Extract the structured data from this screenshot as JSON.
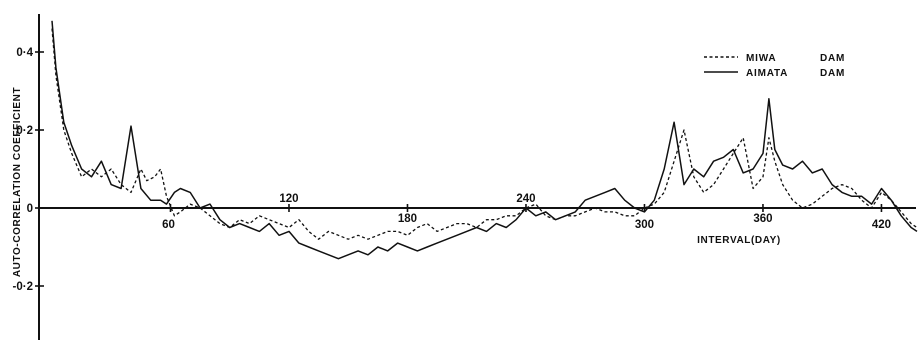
{
  "chart_data": {
    "type": "line",
    "title": "",
    "xlabel": "INTERVAL(DAY)",
    "ylabel": "AUTO-CORRELATION COEFFICIENT",
    "xlim": [
      0,
      438
    ],
    "ylim": [
      -0.24,
      0.45
    ],
    "x_ticks": [
      60,
      120,
      180,
      240,
      300,
      360,
      420
    ],
    "x_tick_labels": [
      "60",
      "120",
      "180",
      "240",
      "300",
      "360",
      "420"
    ],
    "y_ticks": [
      0.4,
      0.2,
      0,
      -0.2
    ],
    "y_tick_labels": [
      "0·4",
      "0·2",
      "0",
      "-0·2"
    ],
    "grid": false,
    "legend_position": "top-right",
    "series": [
      {
        "name": "MIWA DAM",
        "line_style": "dashed",
        "x": [
          0,
          2,
          6,
          10,
          15,
          20,
          25,
          30,
          35,
          40,
          45,
          48,
          52,
          55,
          58,
          62,
          65,
          70,
          75,
          80,
          85,
          90,
          95,
          100,
          105,
          110,
          115,
          120,
          125,
          130,
          135,
          140,
          145,
          150,
          155,
          160,
          165,
          170,
          175,
          180,
          185,
          190,
          195,
          200,
          205,
          210,
          215,
          220,
          225,
          230,
          235,
          240,
          245,
          250,
          255,
          260,
          265,
          270,
          275,
          280,
          285,
          290,
          295,
          300,
          305,
          310,
          315,
          320,
          325,
          330,
          335,
          340,
          345,
          350,
          355,
          360,
          363,
          366,
          370,
          375,
          380,
          385,
          390,
          395,
          400,
          405,
          410,
          415,
          420,
          425,
          430,
          435,
          438
        ],
        "y": [
          0.46,
          0.34,
          0.2,
          0.14,
          0.08,
          0.1,
          0.08,
          0.1,
          0.06,
          0.04,
          0.1,
          0.07,
          0.08,
          0.1,
          0.03,
          -0.02,
          -0.01,
          0.01,
          0.0,
          -0.02,
          -0.04,
          -0.05,
          -0.03,
          -0.04,
          -0.02,
          -0.03,
          -0.04,
          -0.05,
          -0.03,
          -0.06,
          -0.08,
          -0.06,
          -0.07,
          -0.08,
          -0.07,
          -0.08,
          -0.07,
          -0.06,
          -0.06,
          -0.07,
          -0.05,
          -0.04,
          -0.06,
          -0.05,
          -0.04,
          -0.04,
          -0.05,
          -0.03,
          -0.03,
          -0.02,
          -0.02,
          0.0,
          0.01,
          -0.02,
          -0.03,
          -0.02,
          -0.02,
          -0.01,
          0.0,
          -0.01,
          -0.01,
          -0.02,
          -0.02,
          0.0,
          0.01,
          0.04,
          0.12,
          0.2,
          0.08,
          0.04,
          0.06,
          0.1,
          0.14,
          0.18,
          0.05,
          0.08,
          0.18,
          0.12,
          0.06,
          0.02,
          0.0,
          0.01,
          0.03,
          0.05,
          0.06,
          0.05,
          0.02,
          0.0,
          0.04,
          0.02,
          -0.01,
          -0.04,
          -0.05
        ]
      },
      {
        "name": "AIMATA DAM",
        "line_style": "solid",
        "x": [
          0,
          2,
          6,
          10,
          15,
          20,
          25,
          30,
          35,
          40,
          45,
          50,
          55,
          58,
          62,
          65,
          70,
          75,
          80,
          85,
          90,
          95,
          100,
          105,
          110,
          115,
          120,
          125,
          130,
          135,
          140,
          145,
          150,
          155,
          160,
          165,
          170,
          175,
          180,
          185,
          190,
          195,
          200,
          205,
          210,
          215,
          220,
          225,
          230,
          235,
          240,
          245,
          250,
          255,
          260,
          265,
          270,
          275,
          280,
          285,
          290,
          295,
          300,
          305,
          310,
          315,
          320,
          325,
          330,
          335,
          340,
          345,
          350,
          355,
          360,
          363,
          366,
          370,
          375,
          380,
          385,
          390,
          395,
          400,
          405,
          410,
          415,
          420,
          425,
          430,
          435,
          438
        ],
        "y": [
          0.48,
          0.36,
          0.22,
          0.16,
          0.1,
          0.08,
          0.12,
          0.06,
          0.05,
          0.21,
          0.05,
          0.02,
          0.02,
          0.01,
          0.04,
          0.05,
          0.04,
          0.0,
          0.01,
          -0.03,
          -0.05,
          -0.04,
          -0.05,
          -0.06,
          -0.04,
          -0.07,
          -0.06,
          -0.09,
          -0.1,
          -0.11,
          -0.12,
          -0.13,
          -0.12,
          -0.11,
          -0.12,
          -0.1,
          -0.11,
          -0.09,
          -0.1,
          -0.11,
          -0.1,
          -0.09,
          -0.08,
          -0.07,
          -0.06,
          -0.05,
          -0.06,
          -0.04,
          -0.05,
          -0.03,
          0.0,
          -0.02,
          -0.01,
          -0.03,
          -0.02,
          -0.01,
          0.02,
          0.03,
          0.04,
          0.05,
          0.02,
          0.0,
          -0.01,
          0.02,
          0.1,
          0.22,
          0.06,
          0.1,
          0.08,
          0.12,
          0.13,
          0.15,
          0.09,
          0.1,
          0.14,
          0.28,
          0.15,
          0.11,
          0.1,
          0.12,
          0.09,
          0.1,
          0.06,
          0.04,
          0.03,
          0.03,
          0.01,
          0.05,
          0.02,
          -0.02,
          -0.05,
          -0.06
        ]
      }
    ]
  }
}
